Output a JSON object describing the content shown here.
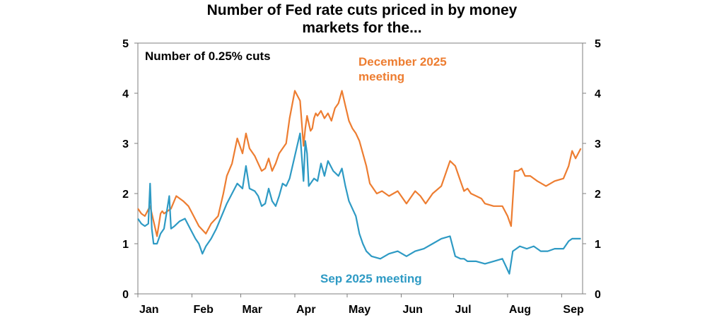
{
  "chart_data": {
    "type": "line",
    "title": [
      "Number of Fed rate cuts priced in by money",
      "markets for the..."
    ],
    "ylabel": "Number of 0.25% cuts",
    "ylim": [
      0,
      5
    ],
    "yticks": [
      "0",
      "1",
      "2",
      "3",
      "4",
      "5"
    ],
    "xticks": [
      "Jan",
      "Feb",
      "Mar",
      "Apr",
      "May",
      "Jun",
      "Jul",
      "Aug",
      "Sep"
    ],
    "x_unit": "day of year 2025 (1 = Jan 1)",
    "series": [
      {
        "name": "December 2025 meeting",
        "color": "#ED7D31",
        "x": [
          1,
          3,
          5,
          8,
          12,
          14,
          15,
          16,
          20,
          23,
          27,
          30,
          33,
          36,
          40,
          43,
          47,
          50,
          52,
          55,
          58,
          61,
          63,
          65,
          68,
          70,
          72,
          74,
          76,
          78,
          80,
          82,
          84,
          86,
          88,
          91,
          94,
          96,
          97,
          98,
          99,
          100,
          101,
          102,
          103,
          104,
          106,
          108,
          110,
          112,
          114,
          116,
          118,
          120,
          122,
          124,
          126,
          128,
          130,
          132,
          134,
          136,
          138,
          141,
          145,
          150,
          155,
          160,
          163,
          166,
          170,
          175,
          180,
          183,
          186,
          188,
          190,
          192,
          195,
          198,
          200,
          205,
          210,
          213,
          215,
          217,
          219,
          221,
          223,
          226,
          230,
          235,
          240,
          245,
          248,
          250,
          252,
          255
        ],
        "values": [
          1.7,
          1.6,
          1.55,
          1.75,
          1.15,
          1.6,
          1.65,
          1.6,
          1.7,
          1.95,
          1.85,
          1.75,
          1.55,
          1.35,
          1.2,
          1.4,
          1.55,
          2.0,
          2.35,
          2.6,
          3.1,
          2.8,
          3.2,
          2.9,
          2.75,
          2.6,
          2.45,
          2.5,
          2.7,
          2.45,
          2.6,
          2.8,
          2.9,
          3.0,
          3.5,
          4.05,
          3.85,
          2.95,
          3.3,
          3.55,
          3.4,
          3.25,
          3.3,
          3.5,
          3.6,
          3.55,
          3.65,
          3.5,
          3.6,
          3.45,
          3.7,
          3.8,
          4.05,
          3.75,
          3.45,
          3.3,
          3.2,
          3.05,
          2.8,
          2.55,
          2.2,
          2.1,
          2.0,
          2.05,
          1.95,
          2.05,
          1.8,
          2.05,
          1.95,
          1.8,
          2.0,
          2.15,
          2.65,
          2.55,
          2.25,
          2.05,
          2.1,
          2.0,
          1.95,
          1.9,
          1.8,
          1.75,
          1.75,
          1.55,
          1.35,
          2.45,
          2.45,
          2.5,
          2.35,
          2.35,
          2.25,
          2.15,
          2.25,
          2.3,
          2.55,
          2.85,
          2.7,
          2.9
        ]
      },
      {
        "name": "Sep 2025 meeting",
        "color": "#2E9AC4",
        "x": [
          1,
          3,
          5,
          7,
          8,
          9,
          10,
          12,
          14,
          16,
          19,
          20,
          22,
          25,
          28,
          31,
          34,
          36,
          38,
          40,
          43,
          46,
          49,
          52,
          55,
          58,
          61,
          63,
          65,
          68,
          70,
          72,
          74,
          76,
          78,
          80,
          82,
          84,
          86,
          88,
          91,
          94,
          96,
          97,
          98,
          99,
          100,
          102,
          104,
          106,
          108,
          110,
          113,
          116,
          118,
          120,
          122,
          124,
          126,
          128,
          130,
          132,
          135,
          140,
          145,
          150,
          155,
          160,
          165,
          170,
          175,
          180,
          183,
          186,
          188,
          190,
          195,
          200,
          205,
          210,
          212,
          214,
          216,
          218,
          220,
          224,
          228,
          232,
          236,
          240,
          245,
          248,
          250,
          252,
          255
        ],
        "values": [
          1.5,
          1.4,
          1.35,
          1.4,
          2.2,
          1.3,
          1.0,
          1.0,
          1.2,
          1.3,
          1.95,
          1.3,
          1.35,
          1.45,
          1.5,
          1.3,
          1.1,
          1.0,
          0.8,
          0.95,
          1.1,
          1.3,
          1.55,
          1.8,
          2.0,
          2.2,
          2.1,
          2.55,
          2.1,
          2.05,
          1.95,
          1.75,
          1.8,
          2.1,
          1.85,
          1.75,
          1.95,
          2.2,
          2.15,
          2.3,
          2.75,
          3.2,
          2.25,
          3.05,
          2.8,
          2.15,
          2.2,
          2.3,
          2.25,
          2.6,
          2.35,
          2.65,
          2.45,
          2.35,
          2.5,
          2.15,
          1.85,
          1.7,
          1.55,
          1.2,
          1.0,
          0.85,
          0.75,
          0.7,
          0.8,
          0.85,
          0.75,
          0.85,
          0.9,
          1.0,
          1.1,
          1.15,
          0.75,
          0.7,
          0.7,
          0.65,
          0.65,
          0.6,
          0.65,
          0.7,
          0.55,
          0.4,
          0.85,
          0.9,
          0.95,
          0.9,
          0.95,
          0.85,
          0.85,
          0.9,
          0.9,
          1.05,
          1.1,
          1.1,
          1.1
        ]
      }
    ]
  }
}
